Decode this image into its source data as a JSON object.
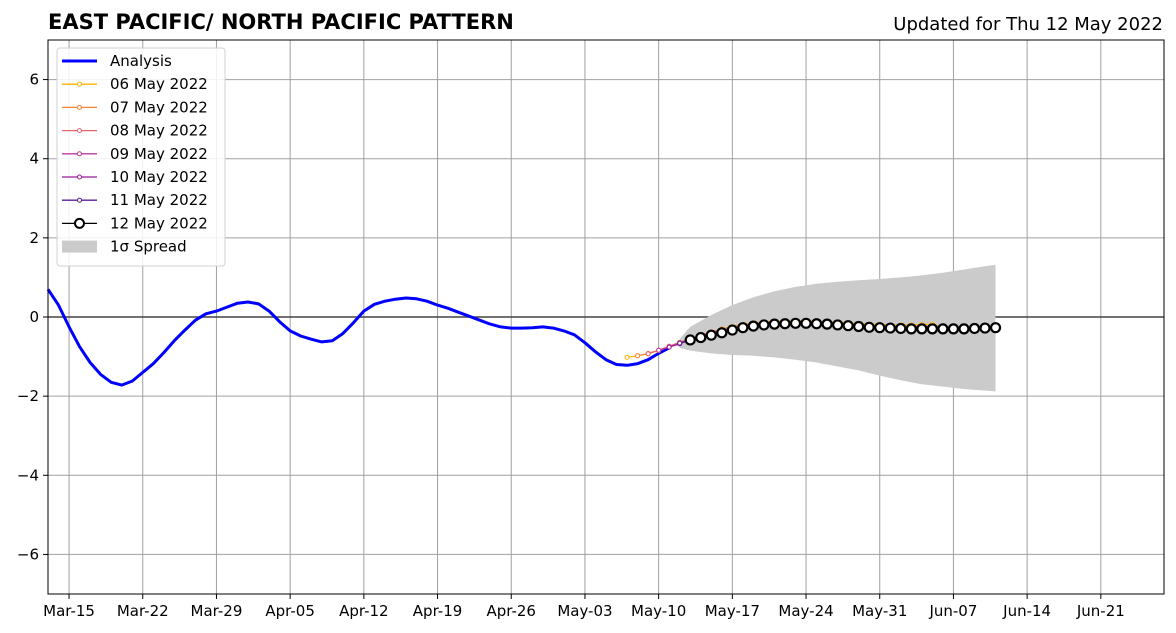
{
  "chart_data": {
    "type": "line",
    "title": "EAST PACIFIC/ NORTH PACIFIC PATTERN",
    "subtitle": "Updated for Thu 12 May 2022",
    "xlabel": "",
    "ylabel": "",
    "xlim": [
      "2022-03-13",
      "2022-06-27"
    ],
    "ylim": [
      -7,
      7
    ],
    "x_ticks": [
      "2022-03-15",
      "2022-03-22",
      "2022-03-29",
      "2022-04-05",
      "2022-04-12",
      "2022-04-19",
      "2022-04-26",
      "2022-05-03",
      "2022-05-10",
      "2022-05-17",
      "2022-05-24",
      "2022-05-31",
      "2022-06-07",
      "2022-06-14",
      "2022-06-21"
    ],
    "x_tick_labels": [
      "Mar-15",
      "Mar-22",
      "Mar-29",
      "Apr-05",
      "Apr-12",
      "Apr-19",
      "Apr-26",
      "May-03",
      "May-10",
      "May-17",
      "May-24",
      "May-31",
      "Jun-07",
      "Jun-14",
      "Jun-21"
    ],
    "y_ticks": [
      -6,
      -4,
      -2,
      0,
      2,
      4,
      6
    ],
    "y_tick_labels": [
      "−6",
      "−4",
      "−2",
      "0",
      "2",
      "4",
      "6"
    ],
    "grid": true,
    "legend_position": "top-left",
    "analysis": {
      "name": "Analysis",
      "color": "#0000ff",
      "x": [
        "2022-03-13",
        "2022-03-14",
        "2022-03-15",
        "2022-03-16",
        "2022-03-17",
        "2022-03-18",
        "2022-03-19",
        "2022-03-20",
        "2022-03-21",
        "2022-03-22",
        "2022-03-23",
        "2022-03-24",
        "2022-03-25",
        "2022-03-26",
        "2022-03-27",
        "2022-03-28",
        "2022-03-29",
        "2022-03-30",
        "2022-03-31",
        "2022-04-01",
        "2022-04-02",
        "2022-04-03",
        "2022-04-04",
        "2022-04-05",
        "2022-04-06",
        "2022-04-07",
        "2022-04-08",
        "2022-04-09",
        "2022-04-10",
        "2022-04-11",
        "2022-04-12",
        "2022-04-13",
        "2022-04-14",
        "2022-04-15",
        "2022-04-16",
        "2022-04-17",
        "2022-04-18",
        "2022-04-19",
        "2022-04-20",
        "2022-04-21",
        "2022-04-22",
        "2022-04-23",
        "2022-04-24",
        "2022-04-25",
        "2022-04-26",
        "2022-04-27",
        "2022-04-28",
        "2022-04-29",
        "2022-04-30",
        "2022-05-01",
        "2022-05-02",
        "2022-05-03",
        "2022-05-04",
        "2022-05-05",
        "2022-05-06",
        "2022-05-07",
        "2022-05-08",
        "2022-05-09",
        "2022-05-10",
        "2022-05-11"
      ],
      "values": [
        0.7,
        0.3,
        -0.25,
        -0.75,
        -1.15,
        -1.45,
        -1.65,
        -1.72,
        -1.62,
        -1.4,
        -1.18,
        -0.9,
        -0.6,
        -0.33,
        -0.08,
        0.08,
        0.15,
        0.25,
        0.35,
        0.38,
        0.33,
        0.15,
        -0.12,
        -0.35,
        -0.48,
        -0.56,
        -0.63,
        -0.6,
        -0.42,
        -0.15,
        0.15,
        0.32,
        0.4,
        0.45,
        0.48,
        0.46,
        0.4,
        0.3,
        0.22,
        0.12,
        0.02,
        -0.08,
        -0.18,
        -0.25,
        -0.28,
        -0.28,
        -0.27,
        -0.25,
        -0.28,
        -0.35,
        -0.45,
        -0.65,
        -0.88,
        -1.08,
        -1.2,
        -1.22,
        -1.18,
        -1.08,
        -0.92,
        -0.78
      ]
    },
    "series": [
      {
        "name": "06 May 2022",
        "color": "#ffb000",
        "x": [
          "2022-05-07",
          "2022-05-08",
          "2022-05-09",
          "2022-05-10",
          "2022-05-11",
          "2022-05-12",
          "2022-05-13",
          "2022-05-14",
          "2022-05-15",
          "2022-05-16",
          "2022-05-17",
          "2022-05-18",
          "2022-05-19",
          "2022-05-20",
          "2022-05-21",
          "2022-05-22",
          "2022-05-23",
          "2022-05-24",
          "2022-05-25",
          "2022-05-26",
          "2022-05-27",
          "2022-05-28",
          "2022-05-29",
          "2022-05-30",
          "2022-05-31",
          "2022-06-01",
          "2022-06-02",
          "2022-06-03",
          "2022-06-04",
          "2022-06-05"
        ],
        "values": [
          -1.02,
          -0.98,
          -0.93,
          -0.85,
          -0.75,
          -0.65,
          -0.55,
          -0.46,
          -0.38,
          -0.3,
          -0.24,
          -0.19,
          -0.15,
          -0.12,
          -0.11,
          -0.1,
          -0.1,
          -0.1,
          -0.11,
          -0.12,
          -0.13,
          -0.15,
          -0.16,
          -0.18,
          -0.19,
          -0.2,
          -0.2,
          -0.2,
          -0.19,
          -0.18
        ]
      },
      {
        "name": "07 May 2022",
        "color": "#f58231",
        "x": [
          "2022-05-08",
          "2022-05-09",
          "2022-05-10",
          "2022-05-11",
          "2022-05-12",
          "2022-05-13",
          "2022-05-14",
          "2022-05-15",
          "2022-05-16",
          "2022-05-17",
          "2022-05-18",
          "2022-05-19",
          "2022-05-20",
          "2022-05-21",
          "2022-05-22",
          "2022-05-23",
          "2022-05-24",
          "2022-05-25",
          "2022-05-26",
          "2022-05-27",
          "2022-05-28",
          "2022-05-29",
          "2022-05-30",
          "2022-05-31",
          "2022-06-01",
          "2022-06-02",
          "2022-06-03",
          "2022-06-04",
          "2022-06-05",
          "2022-06-06"
        ],
        "values": [
          -0.98,
          -0.92,
          -0.84,
          -0.74,
          -0.64,
          -0.55,
          -0.46,
          -0.38,
          -0.31,
          -0.25,
          -0.2,
          -0.16,
          -0.13,
          -0.12,
          -0.11,
          -0.11,
          -0.12,
          -0.13,
          -0.14,
          -0.16,
          -0.18,
          -0.2,
          -0.21,
          -0.22,
          -0.23,
          -0.24,
          -0.24,
          -0.24,
          -0.23,
          -0.22
        ]
      },
      {
        "name": "08 May 2022",
        "color": "#e6646e",
        "x": [
          "2022-05-09",
          "2022-05-10",
          "2022-05-11",
          "2022-05-12",
          "2022-05-13",
          "2022-05-14",
          "2022-05-15",
          "2022-05-16",
          "2022-05-17",
          "2022-05-18",
          "2022-05-19",
          "2022-05-20",
          "2022-05-21",
          "2022-05-22",
          "2022-05-23",
          "2022-05-24",
          "2022-05-25",
          "2022-05-26",
          "2022-05-27",
          "2022-05-28",
          "2022-05-29",
          "2022-05-30",
          "2022-05-31",
          "2022-06-01",
          "2022-06-02",
          "2022-06-03",
          "2022-06-04",
          "2022-06-05",
          "2022-06-06",
          "2022-06-07"
        ],
        "values": [
          -0.93,
          -0.84,
          -0.74,
          -0.64,
          -0.55,
          -0.47,
          -0.39,
          -0.32,
          -0.26,
          -0.21,
          -0.17,
          -0.15,
          -0.13,
          -0.13,
          -0.13,
          -0.14,
          -0.15,
          -0.17,
          -0.19,
          -0.21,
          -0.23,
          -0.25,
          -0.26,
          -0.27,
          -0.28,
          -0.28,
          -0.28,
          -0.28,
          -0.27,
          -0.27
        ]
      },
      {
        "name": "09 May 2022",
        "color": "#c0399b",
        "x": [
          "2022-05-10",
          "2022-05-11",
          "2022-05-12",
          "2022-05-13",
          "2022-05-14",
          "2022-05-15",
          "2022-05-16",
          "2022-05-17",
          "2022-05-18",
          "2022-05-19",
          "2022-05-20",
          "2022-05-21",
          "2022-05-22",
          "2022-05-23",
          "2022-05-24",
          "2022-05-25",
          "2022-05-26",
          "2022-05-27",
          "2022-05-28",
          "2022-05-29",
          "2022-05-30",
          "2022-05-31",
          "2022-06-01",
          "2022-06-02",
          "2022-06-03",
          "2022-06-04",
          "2022-06-05",
          "2022-06-06",
          "2022-06-07",
          "2022-06-08"
        ],
        "values": [
          -0.84,
          -0.76,
          -0.66,
          -0.56,
          -0.48,
          -0.4,
          -0.33,
          -0.27,
          -0.22,
          -0.18,
          -0.15,
          -0.14,
          -0.14,
          -0.14,
          -0.15,
          -0.17,
          -0.19,
          -0.21,
          -0.23,
          -0.25,
          -0.27,
          -0.28,
          -0.29,
          -0.3,
          -0.3,
          -0.3,
          -0.3,
          -0.3,
          -0.29,
          -0.29
        ]
      },
      {
        "name": "10 May 2022",
        "color": "#9b179b",
        "x": [
          "2022-05-11",
          "2022-05-12",
          "2022-05-13",
          "2022-05-14",
          "2022-05-15",
          "2022-05-16",
          "2022-05-17",
          "2022-05-18",
          "2022-05-19",
          "2022-05-20",
          "2022-05-21",
          "2022-05-22",
          "2022-05-23",
          "2022-05-24",
          "2022-05-25",
          "2022-05-26",
          "2022-05-27",
          "2022-05-28",
          "2022-05-29",
          "2022-05-30",
          "2022-05-31",
          "2022-06-01",
          "2022-06-02",
          "2022-06-03",
          "2022-06-04",
          "2022-06-05",
          "2022-06-06",
          "2022-06-07",
          "2022-06-08",
          "2022-06-09"
        ],
        "values": [
          -0.76,
          -0.68,
          -0.58,
          -0.5,
          -0.42,
          -0.35,
          -0.29,
          -0.24,
          -0.2,
          -0.17,
          -0.16,
          -0.15,
          -0.15,
          -0.16,
          -0.18,
          -0.2,
          -0.22,
          -0.24,
          -0.26,
          -0.28,
          -0.29,
          -0.3,
          -0.31,
          -0.31,
          -0.31,
          -0.31,
          -0.3,
          -0.3,
          -0.29,
          -0.29
        ]
      },
      {
        "name": "11 May 2022",
        "color": "#5a1e9b",
        "x": [
          "2022-05-12",
          "2022-05-13",
          "2022-05-14",
          "2022-05-15",
          "2022-05-16",
          "2022-05-17",
          "2022-05-18",
          "2022-05-19",
          "2022-05-20",
          "2022-05-21",
          "2022-05-22",
          "2022-05-23",
          "2022-05-24",
          "2022-05-25",
          "2022-05-26",
          "2022-05-27",
          "2022-05-28",
          "2022-05-29",
          "2022-05-30",
          "2022-05-31",
          "2022-06-01",
          "2022-06-02",
          "2022-06-03",
          "2022-06-04",
          "2022-06-05",
          "2022-06-06",
          "2022-06-07",
          "2022-06-08",
          "2022-06-09",
          "2022-06-10"
        ],
        "values": [
          -0.66,
          -0.58,
          -0.5,
          -0.43,
          -0.36,
          -0.3,
          -0.25,
          -0.21,
          -0.18,
          -0.16,
          -0.16,
          -0.16,
          -0.17,
          -0.18,
          -0.2,
          -0.22,
          -0.24,
          -0.26,
          -0.28,
          -0.29,
          -0.3,
          -0.31,
          -0.31,
          -0.31,
          -0.31,
          -0.3,
          -0.3,
          -0.29,
          -0.29,
          -0.28
        ]
      },
      {
        "name": "12 May 2022",
        "color": "#000000",
        "x": [
          "2022-05-13",
          "2022-05-14",
          "2022-05-15",
          "2022-05-16",
          "2022-05-17",
          "2022-05-18",
          "2022-05-19",
          "2022-05-20",
          "2022-05-21",
          "2022-05-22",
          "2022-05-23",
          "2022-05-24",
          "2022-05-25",
          "2022-05-26",
          "2022-05-27",
          "2022-05-28",
          "2022-05-29",
          "2022-05-30",
          "2022-05-31",
          "2022-06-01",
          "2022-06-02",
          "2022-06-03",
          "2022-06-04",
          "2022-06-05",
          "2022-06-06",
          "2022-06-07",
          "2022-06-08",
          "2022-06-09",
          "2022-06-10",
          "2022-06-11"
        ],
        "values": [
          -0.58,
          -0.52,
          -0.46,
          -0.4,
          -0.33,
          -0.27,
          -0.23,
          -0.2,
          -0.18,
          -0.17,
          -0.16,
          -0.16,
          -0.17,
          -0.18,
          -0.2,
          -0.22,
          -0.24,
          -0.26,
          -0.27,
          -0.28,
          -0.29,
          -0.3,
          -0.3,
          -0.3,
          -0.3,
          -0.3,
          -0.3,
          -0.29,
          -0.28,
          -0.27
        ]
      }
    ],
    "spread": {
      "name": "1σ Spread",
      "color": "#cbcbcb",
      "x": [
        "2022-05-12",
        "2022-05-13",
        "2022-05-15",
        "2022-05-17",
        "2022-05-19",
        "2022-05-21",
        "2022-05-23",
        "2022-05-25",
        "2022-05-27",
        "2022-05-29",
        "2022-05-31",
        "2022-06-02",
        "2022-06-04",
        "2022-06-06",
        "2022-06-08",
        "2022-06-10",
        "2022-06-11"
      ],
      "upper": [
        -0.55,
        -0.25,
        0.05,
        0.3,
        0.5,
        0.65,
        0.76,
        0.84,
        0.89,
        0.93,
        0.96,
        1.0,
        1.05,
        1.12,
        1.2,
        1.28,
        1.32
      ],
      "lower": [
        -0.78,
        -0.85,
        -0.92,
        -0.96,
        -0.98,
        -1.02,
        -1.08,
        -1.15,
        -1.25,
        -1.35,
        -1.48,
        -1.6,
        -1.7,
        -1.76,
        -1.82,
        -1.86,
        -1.88
      ]
    }
  }
}
